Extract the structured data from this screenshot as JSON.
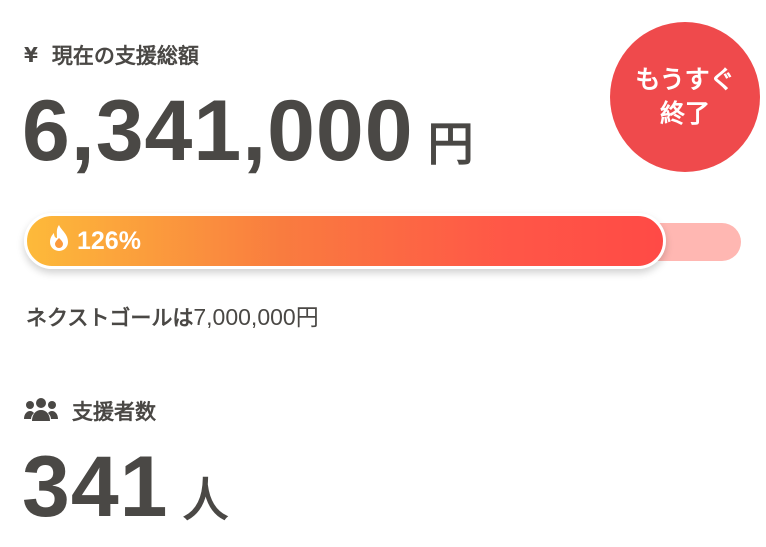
{
  "total": {
    "icon": "yen-icon",
    "yen_symbol": "¥",
    "label": "現在の支援総額",
    "amount": "6,341,000",
    "unit": "円"
  },
  "badge": {
    "line1": "もうすぐ",
    "line2": "終了",
    "color": "#ef4a4c"
  },
  "progress": {
    "icon": "flame-icon",
    "percent_label": "126%",
    "percent": 126,
    "track_color": "#ffb7b2"
  },
  "next_goal": {
    "prefix": "ネクストゴールは",
    "amount": "7,000,000円"
  },
  "supporters": {
    "icon": "users-icon",
    "label": "支援者数",
    "count": "341",
    "unit": "人"
  }
}
